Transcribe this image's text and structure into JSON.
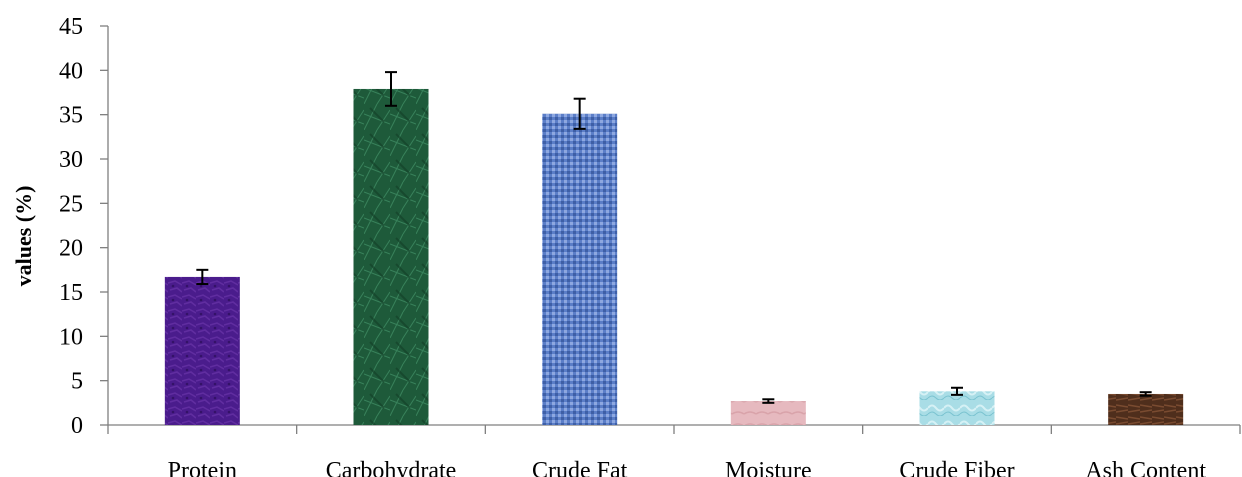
{
  "chart_data": {
    "type": "bar",
    "title": "",
    "xlabel": "",
    "ylabel": "values (%)",
    "ylim": [
      0,
      45
    ],
    "yticks": [
      0,
      5,
      10,
      15,
      20,
      25,
      30,
      35,
      40,
      45
    ],
    "grid": false,
    "legend": "none",
    "categories": [
      "Protein",
      "Carbohydrate",
      "Crude Fat",
      "Moisture",
      "Crude Fiber",
      "Ash Content"
    ],
    "values": [
      16.7,
      37.9,
      35.1,
      2.7,
      3.8,
      3.5
    ],
    "errors": [
      0.8,
      1.9,
      1.7,
      0.2,
      0.4,
      0.2
    ],
    "colors": [
      "#4a1c8c",
      "#1e5a3a",
      "#5b7ec8",
      "#e6b9bf",
      "#a9dde6",
      "#4f2e1c"
    ]
  }
}
